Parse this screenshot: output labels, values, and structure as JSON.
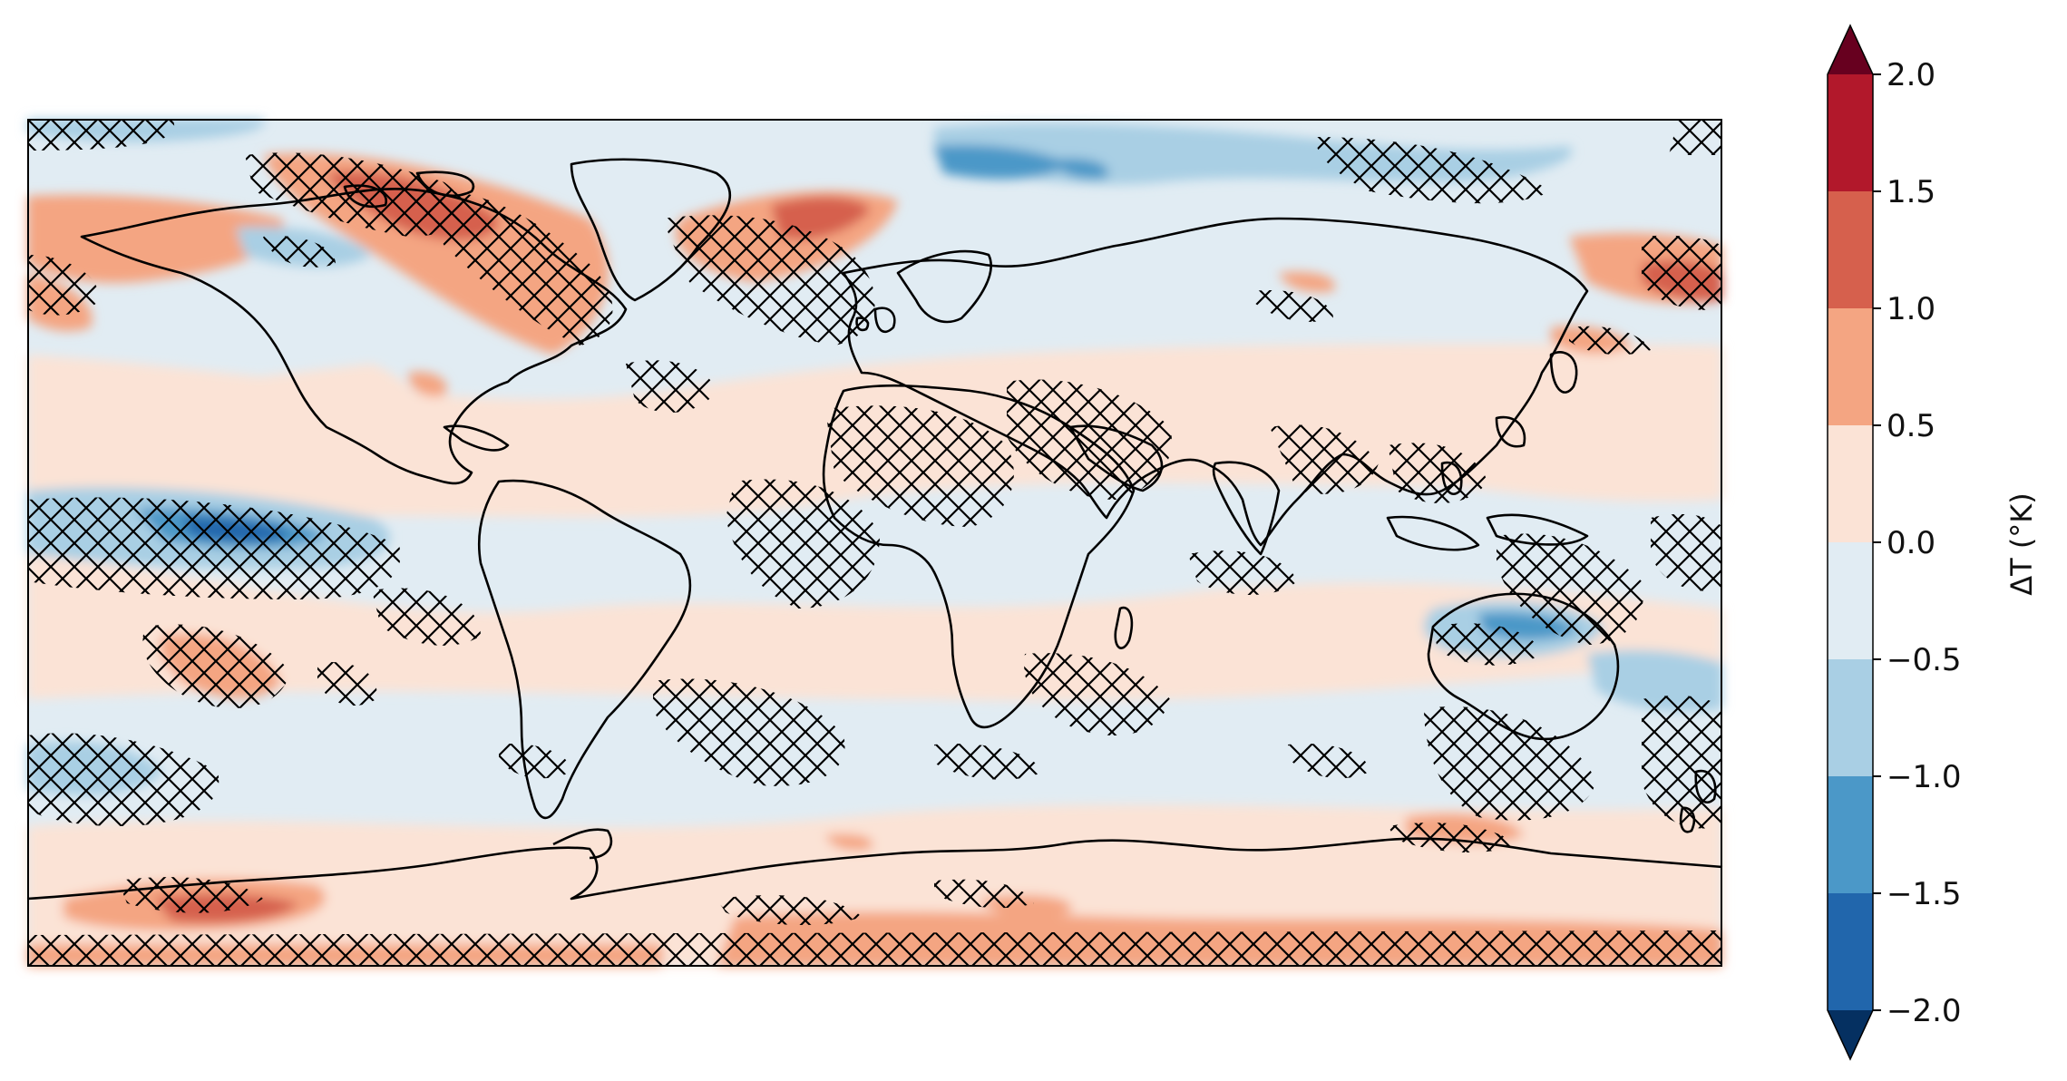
{
  "map": {
    "projection": "plate-carree",
    "variable": "temperature change",
    "hatching": "cross-hatch marks significance regions",
    "coastlines": true
  },
  "colorbar": {
    "label": "ΔT (°K)",
    "extend": "both",
    "ticks": [
      "2.0",
      "1.5",
      "1.0",
      "0.5",
      "0.0",
      "−0.5",
      "−1.0",
      "−1.5",
      "−2.0"
    ],
    "levels": [
      2.0,
      1.5,
      1.0,
      0.5,
      0.0,
      -0.5,
      -1.0,
      -1.5,
      -2.0
    ],
    "colors": {
      "above_max": "#67001f",
      "1.5_to_2.0": "#b2182b",
      "1.0_to_1.5": "#d6604d",
      "0.5_to_1.0": "#f4a582",
      "0.0_to_0.5": "#fbe3d6",
      "-0.5_to_0.0": "#e1ecf3",
      "-1.0_to_-0.5": "#a9cfe4",
      "-1.5_to_-1.0": "#4b98c8",
      "-2.0_to_-1.5": "#2166ac",
      "below_min": "#053061"
    }
  }
}
